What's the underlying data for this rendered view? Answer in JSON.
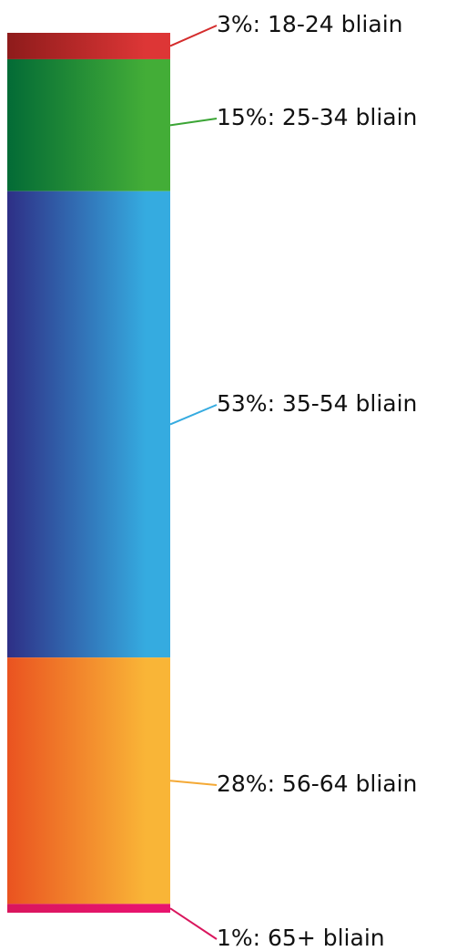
{
  "chart_data": {
    "type": "bar",
    "orientation": "stacked-vertical",
    "title": "",
    "xlabel": "",
    "ylabel": "",
    "ylim": [
      0,
      100
    ],
    "grid": false,
    "legend": "none",
    "segments": [
      {
        "value": 3,
        "category": "18-24 bliain",
        "label": "3%: 18-24 bliain",
        "color_start": "#8e1b1b",
        "color_end": "#dd3636",
        "line_color": "#d42c2c"
      },
      {
        "value": 15,
        "category": "25-34 bliain",
        "label": "15%: 25-34 bliain",
        "color_start": "#036b36",
        "color_end": "#43ad37",
        "line_color": "#3ba535"
      },
      {
        "value": 53,
        "category": "35-54 bliain",
        "label": "53%: 35-54 bliain",
        "color_start": "#2e2f86",
        "color_end": "#35abe0",
        "line_color": "#35abe0"
      },
      {
        "value": 28,
        "category": "56-64 bliain",
        "label": "28%: 56-64 bliain",
        "color_start": "#ea5320",
        "color_end": "#f9b537",
        "line_color": "#f4a935"
      },
      {
        "value": 1,
        "category": "65+ bliain",
        "label": "1%: 65+ bliain",
        "color_start": "#d9165d",
        "color_end": "#e8146e",
        "line_color": "#d9165d"
      }
    ]
  }
}
